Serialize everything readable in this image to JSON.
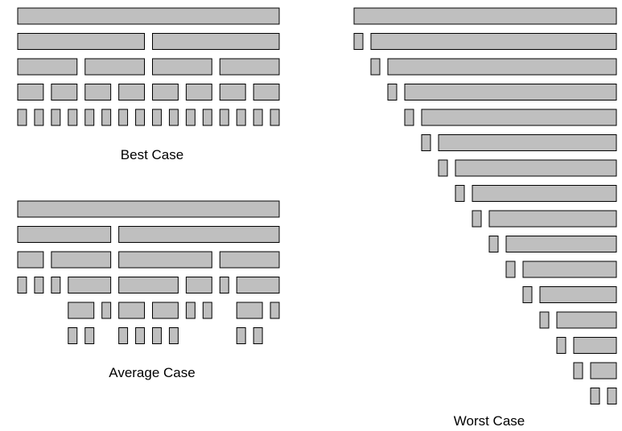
{
  "colors": {
    "bar_fill": "#bfbfbf",
    "bar_stroke": "#000000",
    "background": "#ffffff"
  },
  "diagrams": [
    {
      "id": "best-case",
      "caption": "Best Case",
      "unit_count": 16,
      "levels": [
        [
          [
            0,
            16
          ]
        ],
        [
          [
            0,
            8
          ],
          [
            8,
            16
          ]
        ],
        [
          [
            0,
            4
          ],
          [
            4,
            8
          ],
          [
            8,
            12
          ],
          [
            12,
            16
          ]
        ],
        [
          [
            0,
            2
          ],
          [
            2,
            4
          ],
          [
            4,
            6
          ],
          [
            6,
            8
          ],
          [
            8,
            10
          ],
          [
            10,
            12
          ],
          [
            12,
            14
          ],
          [
            14,
            16
          ]
        ],
        [
          [
            0,
            1
          ],
          [
            1,
            2
          ],
          [
            2,
            3
          ],
          [
            3,
            4
          ],
          [
            4,
            5
          ],
          [
            5,
            6
          ],
          [
            6,
            7
          ],
          [
            7,
            8
          ],
          [
            8,
            9
          ],
          [
            9,
            10
          ],
          [
            10,
            11
          ],
          [
            11,
            12
          ],
          [
            12,
            13
          ],
          [
            13,
            14
          ],
          [
            14,
            15
          ],
          [
            15,
            16
          ]
        ]
      ]
    },
    {
      "id": "average-case",
      "caption": "Average Case",
      "unit_count": 16,
      "levels": [
        [
          [
            0,
            16
          ]
        ],
        [
          [
            0,
            6
          ],
          [
            6,
            16
          ]
        ],
        [
          [
            0,
            2
          ],
          [
            2,
            6
          ],
          [
            6,
            12
          ],
          [
            12,
            16
          ]
        ],
        [
          [
            0,
            1
          ],
          [
            1,
            2
          ],
          [
            2,
            3
          ],
          [
            3,
            6
          ],
          [
            6,
            10
          ],
          [
            10,
            12
          ],
          [
            12,
            13
          ],
          [
            13,
            16
          ]
        ],
        [
          [
            3,
            5
          ],
          [
            5,
            6
          ],
          [
            6,
            8
          ],
          [
            8,
            10
          ],
          [
            10,
            11
          ],
          [
            11,
            12
          ],
          [
            13,
            15
          ],
          [
            15,
            16
          ]
        ],
        [
          [
            3,
            4
          ],
          [
            4,
            5
          ],
          [
            6,
            7
          ],
          [
            7,
            8
          ],
          [
            8,
            9
          ],
          [
            9,
            10
          ],
          [
            13,
            14
          ],
          [
            14,
            15
          ]
        ]
      ]
    },
    {
      "id": "worst-case",
      "caption": "Worst Case",
      "unit_count": 16,
      "levels": [
        [
          [
            0,
            16
          ]
        ],
        [
          [
            0,
            1
          ],
          [
            1,
            16
          ]
        ],
        [
          [
            1,
            2
          ],
          [
            2,
            16
          ]
        ],
        [
          [
            2,
            3
          ],
          [
            3,
            16
          ]
        ],
        [
          [
            3,
            4
          ],
          [
            4,
            16
          ]
        ],
        [
          [
            4,
            5
          ],
          [
            5,
            16
          ]
        ],
        [
          [
            5,
            6
          ],
          [
            6,
            16
          ]
        ],
        [
          [
            6,
            7
          ],
          [
            7,
            16
          ]
        ],
        [
          [
            7,
            8
          ],
          [
            8,
            16
          ]
        ],
        [
          [
            8,
            9
          ],
          [
            9,
            16
          ]
        ],
        [
          [
            9,
            10
          ],
          [
            10,
            16
          ]
        ],
        [
          [
            10,
            11
          ],
          [
            11,
            16
          ]
        ],
        [
          [
            11,
            12
          ],
          [
            12,
            16
          ]
        ],
        [
          [
            12,
            13
          ],
          [
            13,
            16
          ]
        ],
        [
          [
            13,
            14
          ],
          [
            14,
            16
          ]
        ],
        [
          [
            14,
            15
          ],
          [
            15,
            16
          ]
        ]
      ]
    }
  ]
}
